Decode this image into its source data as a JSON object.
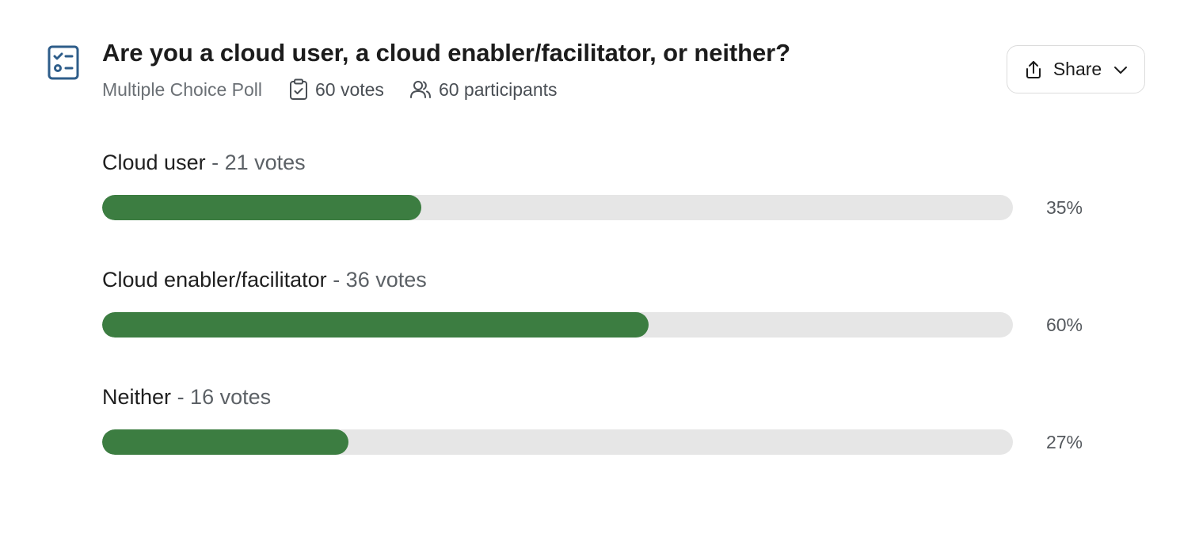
{
  "poll": {
    "question": "Are you a cloud user, a cloud enabler/facilitator, or neither?",
    "type": "Multiple Choice Poll",
    "votes_label": "60 votes",
    "participants_label": "60 participants",
    "icon": "checklist-icon"
  },
  "share": {
    "label": "Share",
    "icon": "upload-share-icon"
  },
  "colors": {
    "bar_fill": "#3c7d41",
    "bar_track": "#e6e6e6",
    "icon_blue": "#2e5d8a"
  },
  "options": [
    {
      "label": "Cloud user",
      "votes": "- 21 votes",
      "percent_label": "35%",
      "percent": 35
    },
    {
      "label": "Cloud enabler/facilitator",
      "votes": "- 36 votes",
      "percent_label": "60%",
      "percent": 60
    },
    {
      "label": "Neither",
      "votes": "- 16 votes",
      "percent_label": "27%",
      "percent": 27
    }
  ]
}
